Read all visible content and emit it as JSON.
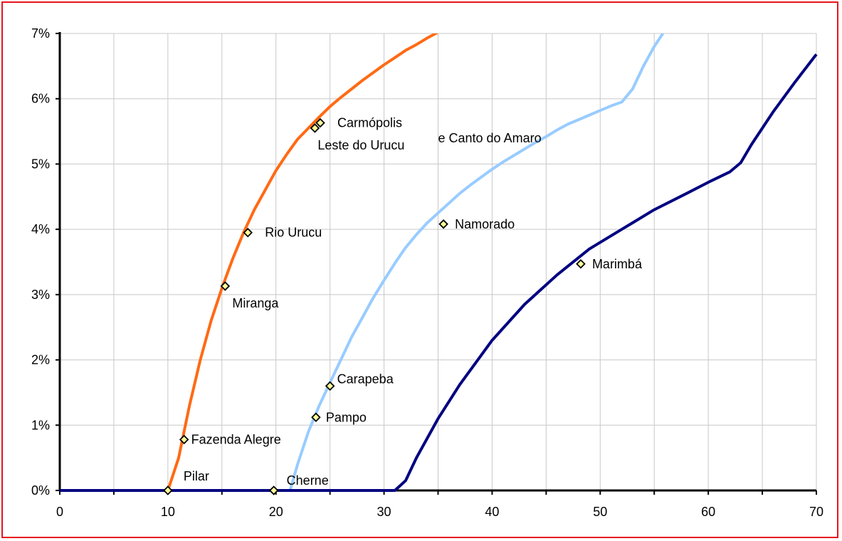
{
  "chart_data": {
    "type": "line",
    "title": "",
    "xlabel": "",
    "ylabel": "",
    "xlim": [
      0,
      70
    ],
    "ylim": [
      0,
      7
    ],
    "x_ticks": [
      "0",
      "10",
      "20",
      "30",
      "40",
      "50",
      "60",
      "70"
    ],
    "y_ticks": [
      "0%",
      "1%",
      "2%",
      "3%",
      "4%",
      "5%",
      "6%",
      "7%"
    ],
    "grid": true,
    "legend": "none",
    "series": [
      {
        "color": "#ff6a14",
        "points": [
          [
            0,
            0
          ],
          [
            10,
            0
          ],
          [
            11,
            0.5
          ],
          [
            12,
            1.3
          ],
          [
            13,
            2.0
          ],
          [
            14,
            2.6
          ],
          [
            15,
            3.1
          ],
          [
            16,
            3.55
          ],
          [
            17,
            3.95
          ],
          [
            18,
            4.3
          ],
          [
            19,
            4.6
          ],
          [
            20,
            4.9
          ],
          [
            21,
            5.15
          ],
          [
            22,
            5.38
          ],
          [
            23,
            5.55
          ],
          [
            24,
            5.72
          ],
          [
            25,
            5.88
          ],
          [
            26,
            6.02
          ],
          [
            27,
            6.15
          ],
          [
            28,
            6.28
          ],
          [
            29,
            6.4
          ],
          [
            30,
            6.52
          ],
          [
            31,
            6.63
          ],
          [
            32,
            6.74
          ],
          [
            33,
            6.83
          ],
          [
            34,
            6.93
          ],
          [
            35,
            7.02
          ]
        ]
      },
      {
        "color": "#99ccff",
        "points": [
          [
            0,
            0
          ],
          [
            21.3,
            0
          ],
          [
            22,
            0.4
          ],
          [
            23,
            0.9
          ],
          [
            24,
            1.3
          ],
          [
            25,
            1.65
          ],
          [
            26,
            2.0
          ],
          [
            27,
            2.35
          ],
          [
            28,
            2.65
          ],
          [
            29,
            2.95
          ],
          [
            30,
            3.22
          ],
          [
            31,
            3.48
          ],
          [
            32,
            3.72
          ],
          [
            33,
            3.92
          ],
          [
            34,
            4.1
          ],
          [
            35,
            4.25
          ],
          [
            36,
            4.4
          ],
          [
            37,
            4.55
          ],
          [
            38,
            4.68
          ],
          [
            39,
            4.8
          ],
          [
            40,
            4.92
          ],
          [
            41,
            5.03
          ],
          [
            42,
            5.13
          ],
          [
            43,
            5.23
          ],
          [
            44,
            5.33
          ],
          [
            45,
            5.42
          ],
          [
            46,
            5.52
          ],
          [
            47,
            5.61
          ],
          [
            48,
            5.68
          ],
          [
            49,
            5.75
          ],
          [
            50,
            5.82
          ],
          [
            51,
            5.89
          ],
          [
            52,
            5.95
          ],
          [
            53,
            6.15
          ],
          [
            54,
            6.5
          ],
          [
            55,
            6.8
          ],
          [
            56,
            7.05
          ]
        ]
      },
      {
        "color": "#000080",
        "points": [
          [
            0,
            0
          ],
          [
            31,
            0
          ],
          [
            32,
            0.15
          ],
          [
            33,
            0.5
          ],
          [
            35,
            1.1
          ],
          [
            37,
            1.62
          ],
          [
            40,
            2.3
          ],
          [
            43,
            2.85
          ],
          [
            46,
            3.3
          ],
          [
            49,
            3.7
          ],
          [
            52,
            4.0
          ],
          [
            55,
            4.3
          ],
          [
            58,
            4.55
          ],
          [
            60,
            4.72
          ],
          [
            62,
            4.88
          ],
          [
            63,
            5.02
          ],
          [
            64,
            5.3
          ],
          [
            66,
            5.8
          ],
          [
            68,
            6.25
          ],
          [
            70,
            6.68
          ]
        ]
      }
    ],
    "markers": [
      {
        "label": "Pilar",
        "x": 10,
        "y": 0
      },
      {
        "label": "Fazenda Alegre",
        "x": 11.5,
        "y": 0.78
      },
      {
        "label": "Miranga",
        "x": 15.3,
        "y": 3.13
      },
      {
        "label": "Rio Urucu",
        "x": 17.4,
        "y": 3.95
      },
      {
        "label": "Leste do Urucu",
        "x": 23.6,
        "y": 5.55
      },
      {
        "label": "Carmópolis",
        "x": 24.1,
        "y": 5.63
      },
      {
        "label": "Cherne",
        "x": 19.8,
        "y": 0
      },
      {
        "label": "Pampo",
        "x": 23.7,
        "y": 1.12
      },
      {
        "label": "Carapeba",
        "x": 25,
        "y": 1.6
      },
      {
        "label": "Namorado",
        "x": 35.5,
        "y": 4.08
      },
      {
        "label": "Marimbá",
        "x": 48.2,
        "y": 3.47
      }
    ],
    "annotations": [
      {
        "text": "e Canto do Amaro",
        "x": 35,
        "y": 5.33
      }
    ],
    "marker_fill": "#ffff99",
    "marker_stroke": "#000000"
  }
}
